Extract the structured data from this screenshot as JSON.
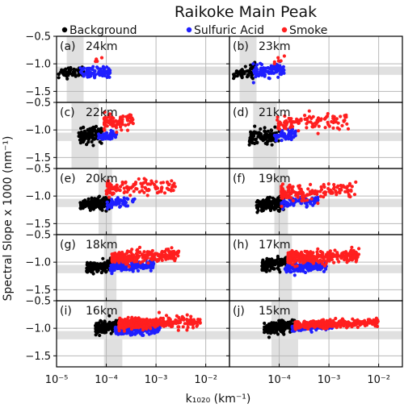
{
  "chart_data": {
    "type": "scatter",
    "title": "Raikoke Main Peak",
    "xlabel": "k₁₀₂₀ (km⁻¹)",
    "ylabel": "Spectral Slope x 1000 (nm⁻¹)",
    "x_scale": "log",
    "xlim": [
      1e-05,
      0.03
    ],
    "ylim": [
      -1.7,
      -0.5
    ],
    "x_ticks": [
      "10⁻⁵",
      "10⁻⁴",
      "10⁻³",
      "10⁻²"
    ],
    "y_ticks": [
      "−0.5",
      "−1.0",
      "−1.5"
    ],
    "grid": true,
    "legend": {
      "placement": "top",
      "entries": [
        "Background",
        "Sulfuric Acid",
        "Smoke"
      ]
    },
    "colors": {
      "Background": "#000000",
      "Sulfuric Acid": "#1f1fff",
      "Smoke": "#ff1f1f",
      "band": "#e0e0e0",
      "grid": "#b8b8b8"
    },
    "shaded_band_y": [
      -1.2,
      -1.05
    ],
    "panels": [
      {
        "label": "(a)",
        "altitude": "24km",
        "band_x": [
          1.6e-05,
          3.5e-05
        ],
        "series": [
          {
            "name": "Background",
            "x_range": [
              1.1e-05,
              3.5e-05
            ],
            "y_mean": -1.17,
            "y_spread": 0.09,
            "n": 55
          },
          {
            "name": "Sulfuric Acid",
            "x_range": [
              3e-05,
              0.00012
            ],
            "y_mean": -1.18,
            "y_spread": 0.09,
            "n": 90
          },
          {
            "name": "Smoke",
            "x_range": [
              6e-05,
              8.5e-05
            ],
            "y_mean": -0.95,
            "y_spread": 0.06,
            "n": 4
          }
        ]
      },
      {
        "label": "(b)",
        "altitude": "23km",
        "band_x": [
          1.6e-05,
          3.5e-05
        ],
        "series": [
          {
            "name": "Background",
            "x_range": [
              1.2e-05,
              3.5e-05
            ],
            "y_mean": -1.18,
            "y_spread": 0.1,
            "n": 60
          },
          {
            "name": "Sulfuric Acid",
            "x_range": [
              3e-05,
              0.00013
            ],
            "y_mean": -1.15,
            "y_spread": 0.1,
            "n": 110
          },
          {
            "name": "Smoke",
            "x_range": [
              8e-05,
              0.00015
            ],
            "y_mean": -0.95,
            "y_spread": 0.07,
            "n": 6
          }
        ]
      },
      {
        "label": "(c)",
        "altitude": "22km",
        "band_x": [
          2e-05,
          7e-05
        ],
        "series": [
          {
            "name": "Background",
            "x_range": [
              2.8e-05,
              8.5e-05
            ],
            "y_mean": -1.12,
            "y_spread": 0.12,
            "n": 120
          },
          {
            "name": "Sulfuric Acid",
            "x_range": [
              7e-05,
              0.00016
            ],
            "y_mean": -1.13,
            "y_spread": 0.08,
            "n": 60
          },
          {
            "name": "Smoke",
            "x_range": [
              9e-05,
              0.00035
            ],
            "y_mean": -0.88,
            "y_spread": 0.12,
            "n": 90
          }
        ]
      },
      {
        "label": "(d)",
        "altitude": "21km",
        "band_x": [
          3e-05,
          9e-05
        ],
        "series": [
          {
            "name": "Background",
            "x_range": [
              2.5e-05,
              0.0001
            ],
            "y_mean": -1.15,
            "y_spread": 0.12,
            "n": 130
          },
          {
            "name": "Sulfuric Acid",
            "x_range": [
              8e-05,
              0.00022
            ],
            "y_mean": -1.12,
            "y_spread": 0.08,
            "n": 60
          },
          {
            "name": "Smoke",
            "x_range": [
              9e-05,
              0.0025
            ],
            "y_mean": -0.88,
            "y_spread": 0.14,
            "n": 110
          }
        ]
      },
      {
        "label": "(e)",
        "altitude": "20km",
        "band_x": [
          7e-05,
          0.00013
        ],
        "series": [
          {
            "name": "Background",
            "x_range": [
              3e-05,
              0.00012
            ],
            "y_mean": -1.17,
            "y_spread": 0.1,
            "n": 140
          },
          {
            "name": "Sulfuric Acid",
            "x_range": [
              0.0001,
              0.0004
            ],
            "y_mean": -1.15,
            "y_spread": 0.08,
            "n": 60
          },
          {
            "name": "Smoke",
            "x_range": [
              0.0001,
              0.0025
            ],
            "y_mean": -0.88,
            "y_spread": 0.13,
            "n": 120
          }
        ]
      },
      {
        "label": "(f)",
        "altitude": "19km",
        "band_x": [
          8e-05,
          0.00015
        ],
        "series": [
          {
            "name": "Background",
            "x_range": [
              3.5e-05,
              0.00013
            ],
            "y_mean": -1.17,
            "y_spread": 0.1,
            "n": 140
          },
          {
            "name": "Sulfuric Acid",
            "x_range": [
              0.00011,
              0.0006
            ],
            "y_mean": -1.13,
            "y_spread": 0.07,
            "n": 80
          },
          {
            "name": "Smoke",
            "x_range": [
              0.00011,
              0.0035
            ],
            "y_mean": -0.95,
            "y_spread": 0.13,
            "n": 150
          }
        ]
      },
      {
        "label": "(g)",
        "altitude": "18km",
        "band_x": [
          9e-05,
          0.00016
        ],
        "series": [
          {
            "name": "Background",
            "x_range": [
              4e-05,
              0.00014
            ],
            "y_mean": -1.1,
            "y_spread": 0.09,
            "n": 130
          },
          {
            "name": "Sulfuric Acid",
            "x_range": [
              0.00012,
              0.0009
            ],
            "y_mean": -1.1,
            "y_spread": 0.08,
            "n": 170
          },
          {
            "name": "Smoke",
            "x_range": [
              0.00013,
              0.003
            ],
            "y_mean": -0.93,
            "y_spread": 0.1,
            "n": 280
          }
        ]
      },
      {
        "label": "(h)",
        "altitude": "17km",
        "band_x": [
          0.0001,
          0.00018
        ],
        "series": [
          {
            "name": "Background",
            "x_range": [
              4.5e-05,
              0.00015
            ],
            "y_mean": -1.05,
            "y_spread": 0.09,
            "n": 150
          },
          {
            "name": "Sulfuric Acid",
            "x_range": [
              0.00013,
              0.0009
            ],
            "y_mean": -1.1,
            "y_spread": 0.08,
            "n": 180
          },
          {
            "name": "Smoke",
            "x_range": [
              0.00015,
              0.004
            ],
            "y_mean": -0.93,
            "y_spread": 0.1,
            "n": 320
          }
        ]
      },
      {
        "label": "(i)",
        "altitude": "16km",
        "band_x": [
          9e-05,
          0.00021
        ],
        "series": [
          {
            "name": "Background",
            "x_range": [
              6e-05,
              0.00018
            ],
            "y_mean": -1.0,
            "y_spread": 0.1,
            "n": 170
          },
          {
            "name": "Sulfuric Acid",
            "x_range": [
              0.00015,
              0.0012
            ],
            "y_mean": -1.05,
            "y_spread": 0.08,
            "n": 200
          },
          {
            "name": "Smoke",
            "x_range": [
              0.00018,
              0.008
            ],
            "y_mean": -0.93,
            "y_spread": 0.09,
            "n": 380
          }
        ]
      },
      {
        "label": "(j)",
        "altitude": "15km",
        "band_x": [
          7e-05,
          0.00024
        ],
        "series": [
          {
            "name": "Background",
            "x_range": [
              5e-05,
              0.00021
            ],
            "y_mean": -1.0,
            "y_spread": 0.1,
            "n": 170
          },
          {
            "name": "Sulfuric Acid",
            "x_range": [
              0.00018,
              0.0012
            ],
            "y_mean": -1.0,
            "y_spread": 0.06,
            "n": 180
          },
          {
            "name": "Smoke",
            "x_range": [
              0.00021,
              0.01
            ],
            "y_mean": -0.95,
            "y_spread": 0.06,
            "n": 380
          }
        ]
      }
    ]
  }
}
